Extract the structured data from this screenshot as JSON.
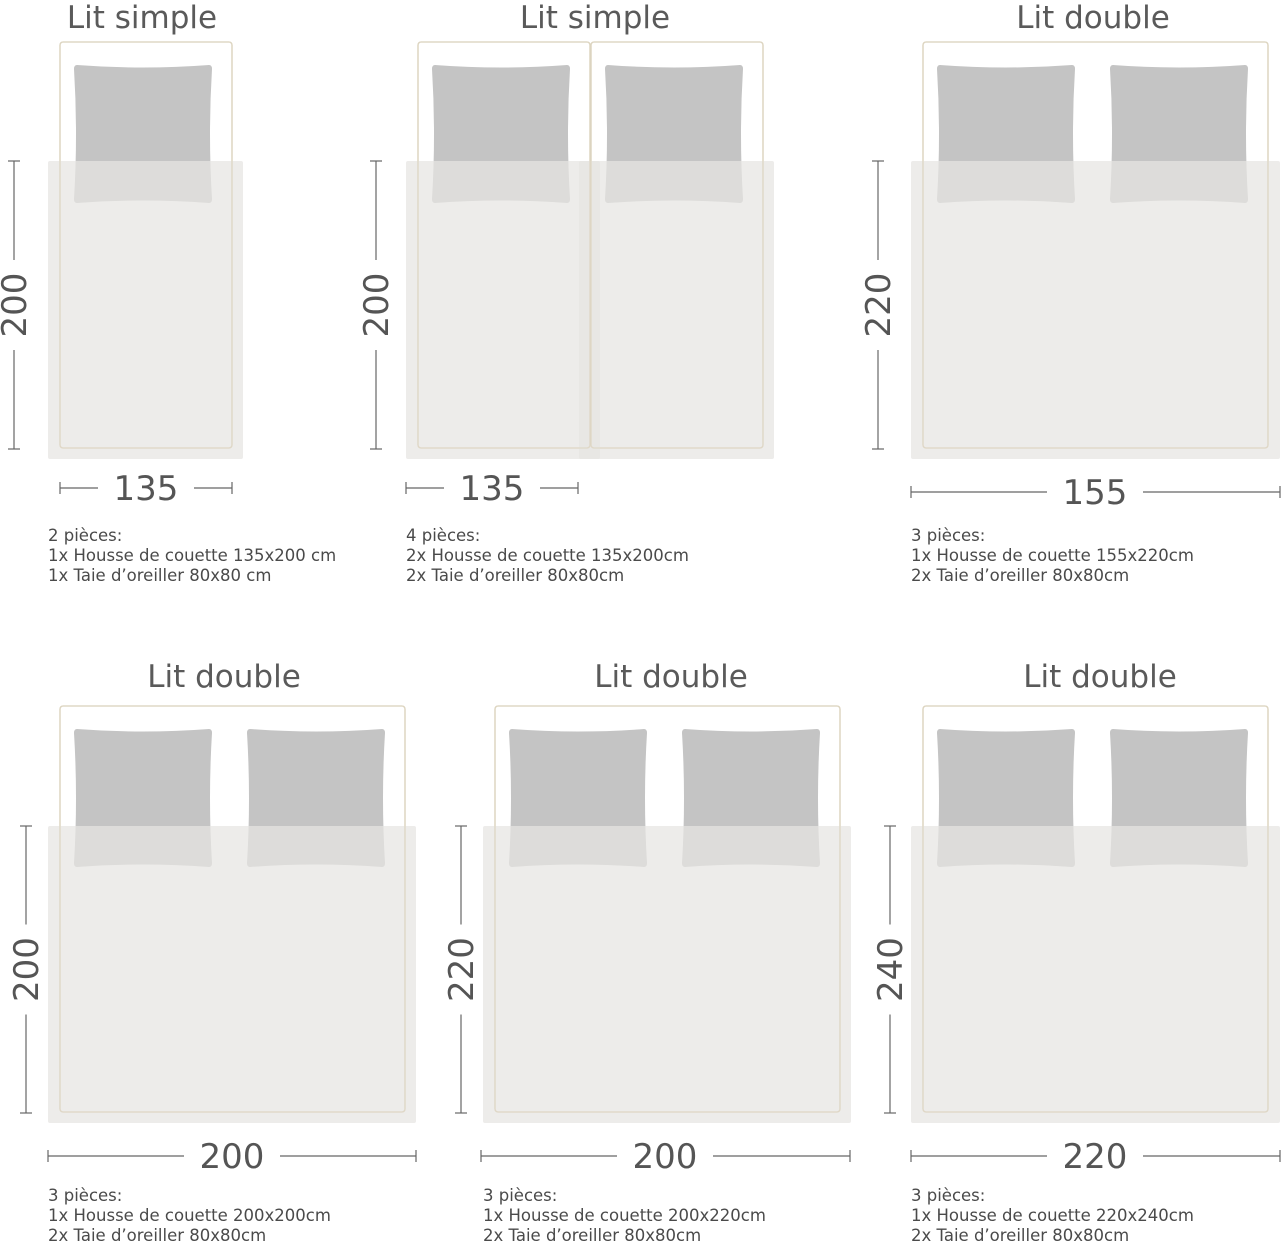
{
  "panels": [
    {
      "title": "Lit simple",
      "height_label": "200",
      "width_label": "135",
      "description": [
        "2 pièces:",
        "1x Housse de couette 135x200 cm",
        "1x Taie d’oreiller 80x80 cm"
      ]
    },
    {
      "title": "Lit simple",
      "height_label": "200",
      "width_label": "135",
      "description": [
        "4 pièces:",
        "2x Housse de couette 135x200cm",
        "2x Taie d’oreiller 80x80cm"
      ]
    },
    {
      "title": "Lit double",
      "height_label": "220",
      "width_label": "155",
      "description": [
        "3 pièces:",
        "1x Housse de couette 155x220cm",
        "2x Taie d’oreiller 80x80cm"
      ]
    },
    {
      "title": "Lit double",
      "height_label": "200",
      "width_label": "200",
      "description": [
        "3 pièces:",
        "1x Housse de couette 200x200cm",
        "2x Taie d’oreiller 80x80cm"
      ]
    },
    {
      "title": "Lit double",
      "height_label": "220",
      "width_label": "200",
      "description": [
        "3 pièces:",
        "1x Housse de couette 200x220cm",
        "2x Taie d’oreiller 80x80cm"
      ]
    },
    {
      "title": "Lit double",
      "height_label": "240",
      "width_label": "220",
      "description": [
        "3 pièces:",
        "1x Housse de couette 220x240cm",
        "2x Taie d’oreiller 80x80cm"
      ]
    }
  ]
}
